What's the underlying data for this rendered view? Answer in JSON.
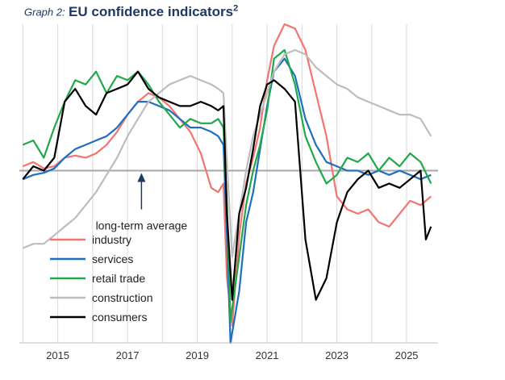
{
  "chart_data": {
    "type": "line",
    "title_prefix": "Graph 2:",
    "title": "EU confidence indicators",
    "title_sup": "2",
    "xlabel": "",
    "ylabel": "",
    "x_ticks": [
      "2015",
      "2017",
      "2019",
      "2021",
      "2023",
      "2025"
    ],
    "x_tick_values": [
      2015,
      2017,
      2019,
      2021,
      2023,
      2025
    ],
    "xlim": [
      2013.9,
      2025.9
    ],
    "ylim": [
      -4.0,
      3.4
    ],
    "grid": "vertical",
    "reference_line": {
      "value": 0,
      "color": "#a6a6a6"
    },
    "annotation": {
      "text": "long-term average",
      "x": 2017.4,
      "y": 0
    },
    "legend_position": "bottom-left",
    "series": [
      {
        "name": "industry",
        "color": "#f47470",
        "x": [
          2014.0,
          2014.3,
          2014.6,
          2014.9,
          2015.2,
          2015.5,
          2015.8,
          2016.1,
          2016.4,
          2016.7,
          2017.0,
          2017.3,
          2017.6,
          2017.9,
          2018.2,
          2018.5,
          2018.8,
          2019.1,
          2019.4,
          2019.6,
          2019.75,
          2019.85,
          2020.0,
          2020.2,
          2020.4,
          2020.6,
          2020.8,
          2021.0,
          2021.2,
          2021.5,
          2021.8,
          2022.1,
          2022.4,
          2022.7,
          2023.0,
          2023.3,
          2023.6,
          2023.9,
          2024.2,
          2024.5,
          2024.8,
          2025.1,
          2025.4,
          2025.7
        ],
        "values": [
          0.1,
          0.2,
          0.05,
          0.1,
          0.3,
          0.35,
          0.3,
          0.4,
          0.6,
          0.9,
          1.3,
          1.6,
          1.8,
          1.7,
          1.5,
          1.2,
          0.9,
          0.4,
          -0.4,
          -0.5,
          -0.3,
          -2.5,
          -3.6,
          -1.5,
          -0.3,
          0.3,
          1.0,
          2.1,
          2.9,
          3.4,
          3.3,
          2.8,
          1.8,
          0.8,
          -0.6,
          -0.9,
          -1.0,
          -0.9,
          -1.2,
          -1.3,
          -1.0,
          -0.7,
          -0.8,
          -0.6
        ]
      },
      {
        "name": "services",
        "color": "#1f6fbf",
        "x": [
          2014.0,
          2014.3,
          2014.6,
          2014.9,
          2015.2,
          2015.5,
          2015.8,
          2016.1,
          2016.4,
          2016.7,
          2017.0,
          2017.3,
          2017.6,
          2017.9,
          2018.2,
          2018.5,
          2018.8,
          2019.1,
          2019.4,
          2019.6,
          2019.75,
          2019.85,
          2019.95,
          2020.2,
          2020.4,
          2020.6,
          2020.8,
          2021.0,
          2021.2,
          2021.5,
          2021.8,
          2022.1,
          2022.4,
          2022.7,
          2023.0,
          2023.3,
          2023.6,
          2023.9,
          2024.2,
          2024.5,
          2024.8,
          2025.1,
          2025.4,
          2025.7
        ],
        "values": [
          -0.2,
          -0.1,
          -0.05,
          0.05,
          0.3,
          0.5,
          0.6,
          0.7,
          0.8,
          1.0,
          1.3,
          1.6,
          1.6,
          1.5,
          1.4,
          1.2,
          1.0,
          1.0,
          0.9,
          0.8,
          0.6,
          -1.5,
          -4.0,
          -2.8,
          -1.2,
          -0.5,
          0.5,
          1.5,
          2.3,
          2.6,
          2.2,
          1.2,
          0.6,
          0.2,
          0.1,
          0.0,
          0.0,
          -0.1,
          0.0,
          -0.1,
          0.0,
          -0.1,
          -0.2,
          -0.1
        ]
      },
      {
        "name": "retail trade",
        "color": "#21a84a",
        "x": [
          2014.0,
          2014.3,
          2014.6,
          2014.9,
          2015.2,
          2015.5,
          2015.8,
          2016.1,
          2016.4,
          2016.7,
          2017.0,
          2017.3,
          2017.6,
          2017.9,
          2018.2,
          2018.5,
          2018.8,
          2019.1,
          2019.4,
          2019.6,
          2019.75,
          2019.85,
          2019.95,
          2020.2,
          2020.4,
          2020.6,
          2020.8,
          2021.0,
          2021.2,
          2021.5,
          2021.8,
          2022.1,
          2022.4,
          2022.7,
          2023.0,
          2023.3,
          2023.6,
          2023.9,
          2024.2,
          2024.5,
          2024.8,
          2025.1,
          2025.4,
          2025.7
        ],
        "values": [
          0.6,
          0.7,
          0.3,
          1.0,
          1.6,
          2.1,
          2.0,
          2.3,
          1.8,
          2.2,
          2.1,
          2.3,
          2.0,
          1.6,
          1.3,
          1.0,
          1.2,
          1.1,
          1.1,
          1.2,
          1.0,
          -0.8,
          -3.5,
          -2.0,
          -0.8,
          0.0,
          0.6,
          1.4,
          2.6,
          2.8,
          2.0,
          0.8,
          0.2,
          -0.3,
          -0.1,
          0.3,
          0.2,
          0.4,
          0.0,
          0.3,
          0.1,
          0.4,
          0.2,
          -0.3
        ]
      },
      {
        "name": "construction",
        "color": "#bdbdbd",
        "x": [
          2014.0,
          2014.3,
          2014.6,
          2014.9,
          2015.2,
          2015.5,
          2015.8,
          2016.1,
          2016.4,
          2016.7,
          2017.0,
          2017.3,
          2017.6,
          2017.9,
          2018.2,
          2018.5,
          2018.8,
          2019.1,
          2019.4,
          2019.6,
          2019.75,
          2019.85,
          2020.0,
          2020.2,
          2020.4,
          2020.6,
          2020.8,
          2021.0,
          2021.2,
          2021.5,
          2021.8,
          2022.1,
          2022.4,
          2022.7,
          2023.0,
          2023.3,
          2023.6,
          2023.9,
          2024.2,
          2024.5,
          2024.8,
          2025.1,
          2025.4,
          2025.7
        ],
        "values": [
          -1.8,
          -1.7,
          -1.7,
          -1.5,
          -1.3,
          -1.1,
          -0.8,
          -0.5,
          -0.1,
          0.3,
          0.8,
          1.2,
          1.6,
          1.8,
          2.0,
          2.1,
          2.2,
          2.1,
          2.0,
          1.9,
          1.8,
          0.2,
          -2.0,
          -1.0,
          0.0,
          0.8,
          1.3,
          1.8,
          2.3,
          2.7,
          2.8,
          2.7,
          2.4,
          2.2,
          2.0,
          1.9,
          1.7,
          1.6,
          1.5,
          1.4,
          1.3,
          1.3,
          1.2,
          0.8
        ]
      },
      {
        "name": "consumers",
        "color": "#000000",
        "x": [
          2014.0,
          2014.3,
          2014.6,
          2014.9,
          2015.2,
          2015.5,
          2015.8,
          2016.1,
          2016.4,
          2016.7,
          2017.0,
          2017.3,
          2017.6,
          2017.9,
          2018.2,
          2018.5,
          2018.8,
          2019.1,
          2019.4,
          2019.6,
          2019.75,
          2019.85,
          2020.0,
          2020.2,
          2020.4,
          2020.6,
          2020.8,
          2021.0,
          2021.2,
          2021.5,
          2021.8,
          2022.1,
          2022.4,
          2022.7,
          2023.0,
          2023.3,
          2023.6,
          2023.9,
          2024.2,
          2024.5,
          2024.8,
          2025.1,
          2025.4,
          2025.55,
          2025.7
        ],
        "values": [
          -0.2,
          0.1,
          0.0,
          0.3,
          1.6,
          1.9,
          1.5,
          1.3,
          1.8,
          1.9,
          2.0,
          2.3,
          1.9,
          1.7,
          1.6,
          1.5,
          1.5,
          1.6,
          1.5,
          1.4,
          1.5,
          -1.0,
          -3.0,
          -1.0,
          -0.4,
          0.5,
          1.5,
          2.0,
          2.1,
          1.9,
          1.6,
          -1.6,
          -3.0,
          -2.5,
          -1.2,
          -0.5,
          -0.2,
          0.0,
          -0.4,
          -0.3,
          -0.4,
          -0.2,
          0.0,
          -1.6,
          -1.3
        ]
      }
    ]
  }
}
